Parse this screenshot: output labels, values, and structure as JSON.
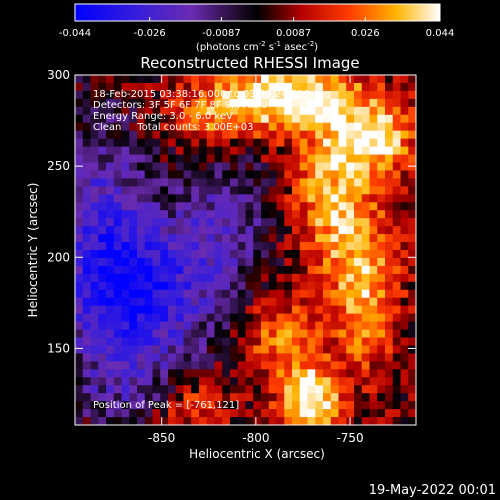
{
  "colorbar": {
    "ticks": [
      "-0.044",
      "-0.026",
      "-0.0087",
      "0.0087",
      "0.026",
      "0.044"
    ],
    "tick_values": [
      -0.044,
      -0.026,
      -0.0087,
      0.0087,
      0.026,
      0.044
    ],
    "unit_label": "(photons cm",
    "unit_exp1": "-2",
    "unit_mid": " s",
    "unit_exp2": "-1",
    "unit_end": " asec",
    "unit_exp3": "-2",
    "unit_close": ")",
    "range": [
      -0.044,
      0.044
    ],
    "colors": [
      "#0000ff",
      "#5a2bd0",
      "#2a1a40",
      "#000000",
      "#b00000",
      "#ff5500",
      "#ffb000",
      "#ffffff"
    ]
  },
  "title": "Reconstructed RHESSI Image",
  "info": {
    "line1": "18-Feb-2015 03:38:16.000 to 03:39:24.000",
    "line2": "Detectors: 3F 5F 6F 7F 8F 9F, Att 0",
    "line3": "Energy Range: 3.0 - 6.0 keV",
    "line4": "Clean     Total counts: 3.00E+03",
    "peak": "Position of Peak = [-761,121]"
  },
  "axes": {
    "xlabel": "Heliocentric X (arcsec)",
    "ylabel": "Heliocentric Y (arcsec)",
    "xticks": [
      "-850",
      "-800",
      "-750"
    ],
    "xtick_values": [
      -850,
      -800,
      -750
    ],
    "yticks": [
      "300",
      "250",
      "200",
      "150"
    ],
    "ytick_values": [
      300,
      250,
      200,
      150
    ]
  },
  "footer": {
    "date": "19-May-2022 00:01"
  },
  "chart_data": {
    "type": "heatmap",
    "title": "Reconstructed RHESSI Image",
    "xlabel": "Heliocentric X (arcsec)",
    "ylabel": "Heliocentric Y (arcsec)",
    "xlim": [
      -896,
      -715
    ],
    "ylim": [
      108,
      300
    ],
    "colorbar_range": [
      -0.044,
      0.044
    ],
    "peak": [
      -761,
      121
    ],
    "regions": [
      {
        "name": "negative",
        "x": [
          -896,
          -815
        ],
        "y": [
          140,
          240
        ]
      },
      {
        "name": "bright-top",
        "x": [
          -790,
          -715
        ],
        "y": [
          240,
          300
        ]
      },
      {
        "name": "bright-right",
        "x": [
          -760,
          -730
        ],
        "y": [
          150,
          300
        ]
      },
      {
        "name": "bright-peak",
        "x": [
          -775,
          -745
        ],
        "y": [
          108,
          160
        ]
      }
    ]
  }
}
